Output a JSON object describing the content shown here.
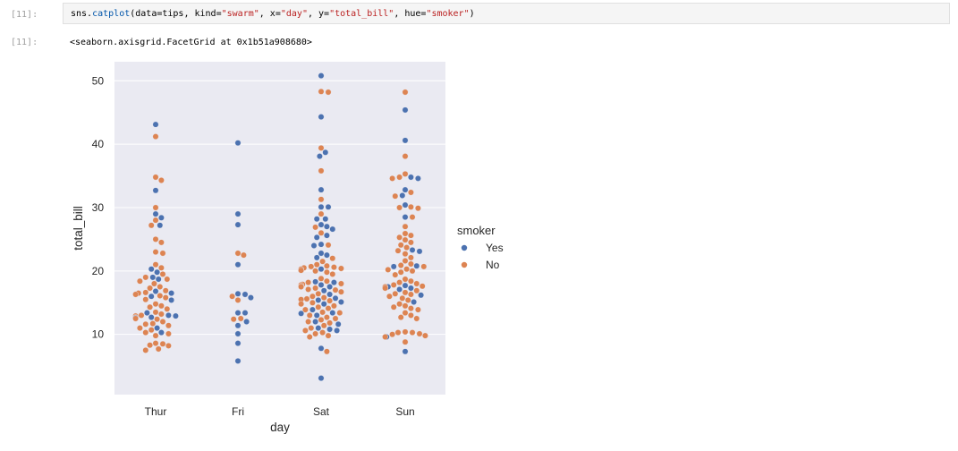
{
  "notebook": {
    "cell_prompt": "[11]:",
    "out_prompt": "[11]:",
    "code": {
      "t1": "sns.",
      "t2": "catplot",
      "t3": "(data=tips, kind=",
      "t4": "\"swarm\"",
      "t5": ", x=",
      "t6": "\"day\"",
      "t7": ", y=",
      "t8": "\"total_bill\"",
      "t9": ", hue=",
      "t10": "\"smoker\"",
      "t11": ")"
    },
    "output": "<seaborn.axisgrid.FacetGrid at 0x1b51a908680>"
  },
  "chart_data": {
    "type": "scatter",
    "xlabel": "day",
    "ylabel": "total_bill",
    "categories": [
      "Thur",
      "Fri",
      "Sat",
      "Sun"
    ],
    "ylim": [
      0.5,
      53
    ],
    "yticks": [
      10,
      20,
      30,
      40,
      50
    ],
    "grid": true,
    "legend": {
      "title": "smoker",
      "placement": "right"
    },
    "series": [
      {
        "name": "Yes",
        "color": "#4c72b0",
        "points": [
          [
            "Thur",
            43.1
          ],
          [
            "Thur",
            32.7
          ],
          [
            "Thur",
            29.0
          ],
          [
            "Thur",
            28.4
          ],
          [
            "Thur",
            27.2
          ],
          [
            "Thur",
            20.3
          ],
          [
            "Thur",
            19.8
          ],
          [
            "Thur",
            19.0
          ],
          [
            "Thur",
            18.7
          ],
          [
            "Thur",
            16.8
          ],
          [
            "Thur",
            16.5
          ],
          [
            "Thur",
            16.0
          ],
          [
            "Thur",
            15.4
          ],
          [
            "Thur",
            13.4
          ],
          [
            "Thur",
            13.0
          ],
          [
            "Thur",
            12.9
          ],
          [
            "Thur",
            12.6
          ],
          [
            "Thur",
            12.7
          ],
          [
            "Thur",
            11.0
          ],
          [
            "Thur",
            10.3
          ],
          [
            "Fri",
            40.2
          ],
          [
            "Fri",
            29.0
          ],
          [
            "Fri",
            27.3
          ],
          [
            "Fri",
            21.0
          ],
          [
            "Fri",
            16.4
          ],
          [
            "Fri",
            16.3
          ],
          [
            "Fri",
            15.8
          ],
          [
            "Fri",
            13.4
          ],
          [
            "Fri",
            13.4
          ],
          [
            "Fri",
            12.0
          ],
          [
            "Fri",
            11.4
          ],
          [
            "Fri",
            10.1
          ],
          [
            "Fri",
            8.6
          ],
          [
            "Fri",
            5.8
          ],
          [
            "Sat",
            50.8
          ],
          [
            "Sat",
            44.3
          ],
          [
            "Sat",
            38.7
          ],
          [
            "Sat",
            38.1
          ],
          [
            "Sat",
            32.8
          ],
          [
            "Sat",
            30.1
          ],
          [
            "Sat",
            30.1
          ],
          [
            "Sat",
            28.2
          ],
          [
            "Sat",
            28.2
          ],
          [
            "Sat",
            27.3
          ],
          [
            "Sat",
            27.0
          ],
          [
            "Sat",
            26.6
          ],
          [
            "Sat",
            25.6
          ],
          [
            "Sat",
            25.3
          ],
          [
            "Sat",
            24.2
          ],
          [
            "Sat",
            24.0
          ],
          [
            "Sat",
            22.8
          ],
          [
            "Sat",
            22.5
          ],
          [
            "Sat",
            22.1
          ],
          [
            "Sat",
            20.3
          ],
          [
            "Sat",
            20.1
          ],
          [
            "Sat",
            18.3
          ],
          [
            "Sat",
            18.2
          ],
          [
            "Sat",
            17.8
          ],
          [
            "Sat",
            17.5
          ],
          [
            "Sat",
            16.9
          ],
          [
            "Sat",
            16.3
          ],
          [
            "Sat",
            15.7
          ],
          [
            "Sat",
            15.4
          ],
          [
            "Sat",
            15.1
          ],
          [
            "Sat",
            14.8
          ],
          [
            "Sat",
            13.9
          ],
          [
            "Sat",
            13.4
          ],
          [
            "Sat",
            13.3
          ],
          [
            "Sat",
            13.0
          ],
          [
            "Sat",
            12.0
          ],
          [
            "Sat",
            11.6
          ],
          [
            "Sat",
            11.0
          ],
          [
            "Sat",
            10.8
          ],
          [
            "Sat",
            10.6
          ],
          [
            "Sat",
            7.8
          ],
          [
            "Sat",
            3.1
          ],
          [
            "Sun",
            45.4
          ],
          [
            "Sun",
            40.6
          ],
          [
            "Sun",
            34.8
          ],
          [
            "Sun",
            34.6
          ],
          [
            "Sun",
            32.8
          ],
          [
            "Sun",
            31.9
          ],
          [
            "Sun",
            30.4
          ],
          [
            "Sun",
            28.5
          ],
          [
            "Sun",
            23.3
          ],
          [
            "Sun",
            23.1
          ],
          [
            "Sun",
            20.8
          ],
          [
            "Sun",
            20.7
          ],
          [
            "Sun",
            17.7
          ],
          [
            "Sun",
            17.5
          ],
          [
            "Sun",
            17.3
          ],
          [
            "Sun",
            17.1
          ],
          [
            "Sun",
            16.2
          ],
          [
            "Sun",
            15.1
          ],
          [
            "Sun",
            9.6
          ],
          [
            "Sun",
            7.3
          ]
        ]
      },
      {
        "name": "No",
        "color": "#dd8452",
        "points": [
          [
            "Thur",
            41.2
          ],
          [
            "Thur",
            34.8
          ],
          [
            "Thur",
            34.3
          ],
          [
            "Thur",
            30.0
          ],
          [
            "Thur",
            28.0
          ],
          [
            "Thur",
            27.2
          ],
          [
            "Thur",
            25.0
          ],
          [
            "Thur",
            24.5
          ],
          [
            "Thur",
            23.0
          ],
          [
            "Thur",
            22.8
          ],
          [
            "Thur",
            21.0
          ],
          [
            "Thur",
            20.5
          ],
          [
            "Thur",
            19.5
          ],
          [
            "Thur",
            19.0
          ],
          [
            "Thur",
            18.7
          ],
          [
            "Thur",
            18.4
          ],
          [
            "Thur",
            18.0
          ],
          [
            "Thur",
            17.5
          ],
          [
            "Thur",
            17.3
          ],
          [
            "Thur",
            16.9
          ],
          [
            "Thur",
            16.6
          ],
          [
            "Thur",
            16.5
          ],
          [
            "Thur",
            16.3
          ],
          [
            "Thur",
            16.1
          ],
          [
            "Thur",
            15.8
          ],
          [
            "Thur",
            15.5
          ],
          [
            "Thur",
            14.8
          ],
          [
            "Thur",
            14.5
          ],
          [
            "Thur",
            14.3
          ],
          [
            "Thur",
            14.0
          ],
          [
            "Thur",
            13.5
          ],
          [
            "Thur",
            13.2
          ],
          [
            "Thur",
            13.0
          ],
          [
            "Thur",
            12.9
          ],
          [
            "Thur",
            12.7
          ],
          [
            "Thur",
            12.5
          ],
          [
            "Thur",
            12.4
          ],
          [
            "Thur",
            12.0
          ],
          [
            "Thur",
            11.7
          ],
          [
            "Thur",
            11.6
          ],
          [
            "Thur",
            11.4
          ],
          [
            "Thur",
            11.0
          ],
          [
            "Thur",
            10.7
          ],
          [
            "Thur",
            10.3
          ],
          [
            "Thur",
            10.1
          ],
          [
            "Thur",
            9.8
          ],
          [
            "Thur",
            8.6
          ],
          [
            "Thur",
            8.5
          ],
          [
            "Thur",
            8.3
          ],
          [
            "Thur",
            8.2
          ],
          [
            "Thur",
            7.7
          ],
          [
            "Thur",
            7.5
          ],
          [
            "Fri",
            22.8
          ],
          [
            "Fri",
            22.5
          ],
          [
            "Fri",
            16.0
          ],
          [
            "Fri",
            15.4
          ],
          [
            "Fri",
            12.5
          ],
          [
            "Fri",
            12.4
          ],
          [
            "Sat",
            48.3
          ],
          [
            "Sat",
            48.2
          ],
          [
            "Sat",
            39.4
          ],
          [
            "Sat",
            35.8
          ],
          [
            "Sat",
            31.3
          ],
          [
            "Sat",
            29.0
          ],
          [
            "Sat",
            26.9
          ],
          [
            "Sat",
            26.0
          ],
          [
            "Sat",
            24.1
          ],
          [
            "Sat",
            22.0
          ],
          [
            "Sat",
            21.5
          ],
          [
            "Sat",
            21.0
          ],
          [
            "Sat",
            20.8
          ],
          [
            "Sat",
            20.7
          ],
          [
            "Sat",
            20.6
          ],
          [
            "Sat",
            20.5
          ],
          [
            "Sat",
            20.4
          ],
          [
            "Sat",
            20.3
          ],
          [
            "Sat",
            20.1
          ],
          [
            "Sat",
            20.0
          ],
          [
            "Sat",
            19.8
          ],
          [
            "Sat",
            19.5
          ],
          [
            "Sat",
            18.8
          ],
          [
            "Sat",
            18.4
          ],
          [
            "Sat",
            18.2
          ],
          [
            "Sat",
            18.0
          ],
          [
            "Sat",
            17.9
          ],
          [
            "Sat",
            17.8
          ],
          [
            "Sat",
            17.6
          ],
          [
            "Sat",
            17.5
          ],
          [
            "Sat",
            17.3
          ],
          [
            "Sat",
            17.1
          ],
          [
            "Sat",
            17.0
          ],
          [
            "Sat",
            16.7
          ],
          [
            "Sat",
            16.4
          ],
          [
            "Sat",
            16.0
          ],
          [
            "Sat",
            15.8
          ],
          [
            "Sat",
            15.6
          ],
          [
            "Sat",
            15.5
          ],
          [
            "Sat",
            15.3
          ],
          [
            "Sat",
            15.0
          ],
          [
            "Sat",
            14.8
          ],
          [
            "Sat",
            14.5
          ],
          [
            "Sat",
            14.3
          ],
          [
            "Sat",
            14.1
          ],
          [
            "Sat",
            13.9
          ],
          [
            "Sat",
            13.5
          ],
          [
            "Sat",
            13.4
          ],
          [
            "Sat",
            13.0
          ],
          [
            "Sat",
            12.7
          ],
          [
            "Sat",
            12.5
          ],
          [
            "Sat",
            12.3
          ],
          [
            "Sat",
            12.0
          ],
          [
            "Sat",
            11.8
          ],
          [
            "Sat",
            11.4
          ],
          [
            "Sat",
            11.0
          ],
          [
            "Sat",
            10.6
          ],
          [
            "Sat",
            10.3
          ],
          [
            "Sat",
            10.1
          ],
          [
            "Sat",
            9.8
          ],
          [
            "Sat",
            9.6
          ],
          [
            "Sat",
            7.3
          ],
          [
            "Sun",
            48.2
          ],
          [
            "Sun",
            38.1
          ],
          [
            "Sun",
            35.3
          ],
          [
            "Sun",
            34.8
          ],
          [
            "Sun",
            34.6
          ],
          [
            "Sun",
            32.4
          ],
          [
            "Sun",
            31.8
          ],
          [
            "Sun",
            30.1
          ],
          [
            "Sun",
            30.0
          ],
          [
            "Sun",
            29.9
          ],
          [
            "Sun",
            28.5
          ],
          [
            "Sun",
            27.0
          ],
          [
            "Sun",
            25.9
          ],
          [
            "Sun",
            25.6
          ],
          [
            "Sun",
            25.3
          ],
          [
            "Sun",
            24.9
          ],
          [
            "Sun",
            24.5
          ],
          [
            "Sun",
            24.1
          ],
          [
            "Sun",
            23.7
          ],
          [
            "Sun",
            23.2
          ],
          [
            "Sun",
            22.7
          ],
          [
            "Sun",
            22.1
          ],
          [
            "Sun",
            21.6
          ],
          [
            "Sun",
            21.1
          ],
          [
            "Sun",
            20.9
          ],
          [
            "Sun",
            20.7
          ],
          [
            "Sun",
            20.3
          ],
          [
            "Sun",
            20.2
          ],
          [
            "Sun",
            20.0
          ],
          [
            "Sun",
            19.8
          ],
          [
            "Sun",
            19.4
          ],
          [
            "Sun",
            18.7
          ],
          [
            "Sun",
            18.4
          ],
          [
            "Sun",
            18.2
          ],
          [
            "Sun",
            18.0
          ],
          [
            "Sun",
            17.8
          ],
          [
            "Sun",
            17.6
          ],
          [
            "Sun",
            17.5
          ],
          [
            "Sun",
            17.3
          ],
          [
            "Sun",
            16.9
          ],
          [
            "Sun",
            16.6
          ],
          [
            "Sun",
            16.4
          ],
          [
            "Sun",
            16.3
          ],
          [
            "Sun",
            16.0
          ],
          [
            "Sun",
            15.7
          ],
          [
            "Sun",
            15.4
          ],
          [
            "Sun",
            14.8
          ],
          [
            "Sun",
            14.5
          ],
          [
            "Sun",
            14.3
          ],
          [
            "Sun",
            14.1
          ],
          [
            "Sun",
            13.9
          ],
          [
            "Sun",
            13.4
          ],
          [
            "Sun",
            13.0
          ],
          [
            "Sun",
            12.7
          ],
          [
            "Sun",
            12.5
          ],
          [
            "Sun",
            10.4
          ],
          [
            "Sun",
            10.3
          ],
          [
            "Sun",
            10.3
          ],
          [
            "Sun",
            10.1
          ],
          [
            "Sun",
            10.0
          ],
          [
            "Sun",
            9.8
          ],
          [
            "Sun",
            9.6
          ],
          [
            "Sun",
            8.8
          ]
        ]
      }
    ]
  }
}
